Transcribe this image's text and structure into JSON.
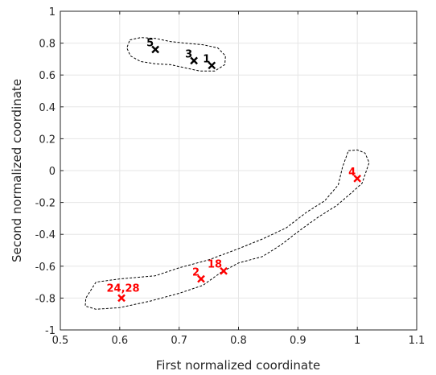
{
  "chart_data": {
    "type": "scatter",
    "xlabel": "First normalized coordinate",
    "ylabel": "Second normalized coordinate",
    "xlim": [
      0.5,
      1.1
    ],
    "ylim": [
      -1,
      1
    ],
    "xticks": [
      0.5,
      0.6,
      0.7,
      0.8,
      0.9,
      1,
      1.1
    ],
    "yticks": [
      -1,
      -0.8,
      -0.6,
      -0.4,
      -0.2,
      0,
      0.2,
      0.4,
      0.6,
      0.8,
      1
    ],
    "grid": true,
    "marker": "x",
    "series": [
      {
        "color": "#000000",
        "points": [
          {
            "label": "5",
            "x": 0.66,
            "y": 0.76
          },
          {
            "label": "3",
            "x": 0.725,
            "y": 0.69
          },
          {
            "label": "1",
            "x": 0.755,
            "y": 0.66
          }
        ],
        "boundary": [
          [
            0.617,
            0.82
          ],
          [
            0.635,
            0.835
          ],
          [
            0.66,
            0.83
          ],
          [
            0.685,
            0.81
          ],
          [
            0.71,
            0.8
          ],
          [
            0.74,
            0.79
          ],
          [
            0.765,
            0.77
          ],
          [
            0.778,
            0.72
          ],
          [
            0.777,
            0.665
          ],
          [
            0.76,
            0.625
          ],
          [
            0.735,
            0.625
          ],
          [
            0.71,
            0.645
          ],
          [
            0.685,
            0.665
          ],
          [
            0.66,
            0.67
          ],
          [
            0.635,
            0.685
          ],
          [
            0.618,
            0.72
          ],
          [
            0.612,
            0.77
          ]
        ]
      },
      {
        "color": "#ff0000",
        "points": [
          {
            "label": "4",
            "x": 1.0,
            "y": -0.05
          },
          {
            "label": "18",
            "x": 0.775,
            "y": -0.63
          },
          {
            "label": "2",
            "x": 0.737,
            "y": -0.68
          },
          {
            "label": "24,28",
            "x": 0.603,
            "y": -0.8
          }
        ],
        "boundary": [
          [
            0.985,
            0.125
          ],
          [
            1.0,
            0.13
          ],
          [
            1.013,
            0.11
          ],
          [
            1.02,
            0.05
          ],
          [
            1.008,
            -0.08
          ],
          [
            0.99,
            -0.14
          ],
          [
            0.965,
            -0.22
          ],
          [
            0.935,
            -0.29
          ],
          [
            0.905,
            -0.37
          ],
          [
            0.87,
            -0.47
          ],
          [
            0.84,
            -0.54
          ],
          [
            0.8,
            -0.58
          ],
          [
            0.77,
            -0.64
          ],
          [
            0.74,
            -0.72
          ],
          [
            0.7,
            -0.77
          ],
          [
            0.65,
            -0.82
          ],
          [
            0.6,
            -0.86
          ],
          [
            0.56,
            -0.87
          ],
          [
            0.542,
            -0.85
          ],
          [
            0.543,
            -0.8
          ],
          [
            0.56,
            -0.7
          ],
          [
            0.6,
            -0.68
          ],
          [
            0.66,
            -0.66
          ],
          [
            0.7,
            -0.61
          ],
          [
            0.75,
            -0.56
          ],
          [
            0.8,
            -0.49
          ],
          [
            0.84,
            -0.43
          ],
          [
            0.88,
            -0.36
          ],
          [
            0.915,
            -0.26
          ],
          [
            0.945,
            -0.19
          ],
          [
            0.968,
            -0.09
          ],
          [
            0.975,
            0.02
          ]
        ]
      }
    ]
  }
}
